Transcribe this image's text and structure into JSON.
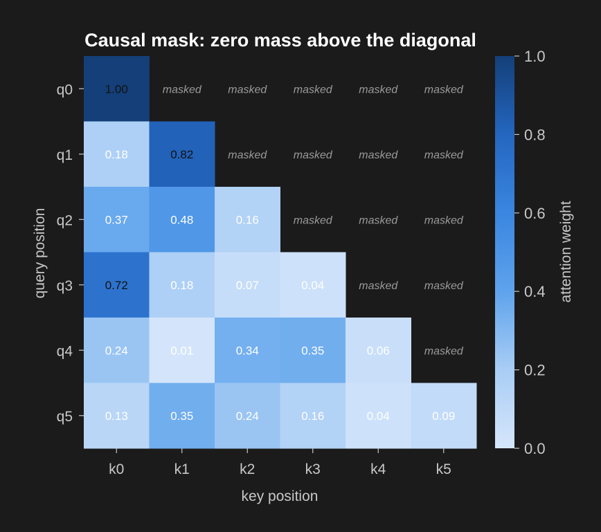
{
  "chart_data": {
    "type": "heatmap",
    "title": "Causal mask: zero mass above the diagonal",
    "xlabel": "key position",
    "ylabel": "query position",
    "x_categories": [
      "k0",
      "k1",
      "k2",
      "k3",
      "k4",
      "k5"
    ],
    "y_categories": [
      "q0",
      "q1",
      "q2",
      "q3",
      "q4",
      "q5"
    ],
    "values": [
      [
        1.0,
        null,
        null,
        null,
        null,
        null
      ],
      [
        0.18,
        0.82,
        null,
        null,
        null,
        null
      ],
      [
        0.37,
        0.48,
        0.16,
        null,
        null,
        null
      ],
      [
        0.72,
        0.18,
        0.07,
        0.04,
        null,
        null
      ],
      [
        0.24,
        0.01,
        0.34,
        0.35,
        0.06,
        null
      ],
      [
        0.13,
        0.35,
        0.24,
        0.16,
        0.04,
        0.09
      ]
    ],
    "cell_labels": [
      [
        "1.00",
        "masked",
        "masked",
        "masked",
        "masked",
        "masked"
      ],
      [
        "0.18",
        "0.82",
        "masked",
        "masked",
        "masked",
        "masked"
      ],
      [
        "0.37",
        "0.48",
        "0.16",
        "masked",
        "masked",
        "masked"
      ],
      [
        "0.72",
        "0.18",
        "0.07",
        "0.04",
        "masked",
        "masked"
      ],
      [
        "0.24",
        "0.01",
        "0.34",
        "0.35",
        "0.06",
        "masked"
      ],
      [
        "0.13",
        "0.35",
        "0.24",
        "0.16",
        "0.04",
        "0.09"
      ]
    ],
    "colorbar": {
      "label": "attention weight",
      "range": [
        0.0,
        1.0
      ],
      "ticks": [
        "0.0",
        "0.2",
        "0.4",
        "0.6",
        "0.8",
        "1.0"
      ],
      "colors": [
        "#d6e6fb",
        "#a9cdf5",
        "#5ea3ec",
        "#3a86e0",
        "#2466c0",
        "#143f78"
      ]
    },
    "background_color": "#1b1b1b",
    "grid": false
  }
}
